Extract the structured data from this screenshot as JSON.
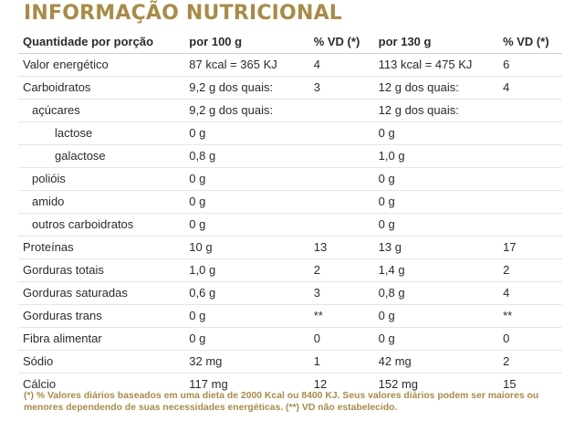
{
  "title": "INFORMAÇÃO NUTRICIONAL",
  "header": {
    "col_name": "Quantidade por porção",
    "col_100": "por 100 g",
    "col_vd1": "% VD (*)",
    "col_130": "por 130 g",
    "col_vd2": "% VD (*)"
  },
  "rows": [
    {
      "name": "Valor energético",
      "indent": 0,
      "v1": "87 kcal = 365 KJ",
      "vd1": "4",
      "v2": "113 kcal = 475 KJ",
      "vd2": "6"
    },
    {
      "name": "Carboidratos",
      "indent": 0,
      "v1": "9,2 g dos quais:",
      "vd1": "3",
      "v2": "12 g dos quais:",
      "vd2": "4"
    },
    {
      "name": "açúcares",
      "indent": 1,
      "v1": "9,2 g dos quais:",
      "vd1": "",
      "v2": "12 g dos quais:",
      "vd2": ""
    },
    {
      "name": "lactose",
      "indent": 2,
      "v1": "0 g",
      "vd1": "",
      "v2": "0 g",
      "vd2": ""
    },
    {
      "name": "galactose",
      "indent": 2,
      "v1": "0,8 g",
      "vd1": "",
      "v2": "1,0 g",
      "vd2": ""
    },
    {
      "name": "polióis",
      "indent": 1,
      "v1": "0 g",
      "vd1": "",
      "v2": "0 g",
      "vd2": ""
    },
    {
      "name": "amido",
      "indent": 1,
      "v1": "0 g",
      "vd1": "",
      "v2": "0 g",
      "vd2": ""
    },
    {
      "name": "outros carboidratos",
      "indent": 1,
      "v1": "0 g",
      "vd1": "",
      "v2": "0 g",
      "vd2": ""
    },
    {
      "name": "Proteínas",
      "indent": 0,
      "v1": "10 g",
      "vd1": "13",
      "v2": "13 g",
      "vd2": "17"
    },
    {
      "name": "Gorduras totais",
      "indent": 0,
      "v1": "1,0 g",
      "vd1": "2",
      "v2": "1,4 g",
      "vd2": "2"
    },
    {
      "name": "Gorduras saturadas",
      "indent": 0,
      "v1": "0,6 g",
      "vd1": "3",
      "v2": "0,8 g",
      "vd2": "4"
    },
    {
      "name": "Gorduras trans",
      "indent": 0,
      "v1": "0 g",
      "vd1": "**",
      "v2": "0 g",
      "vd2": "**"
    },
    {
      "name": "Fibra alimentar",
      "indent": 0,
      "v1": "0 g",
      "vd1": "0",
      "v2": "0 g",
      "vd2": "0"
    },
    {
      "name": "Sódio",
      "indent": 0,
      "v1": "32 mg",
      "vd1": "1",
      "v2": "42 mg",
      "vd2": "2"
    },
    {
      "name": "Cálcio",
      "indent": 0,
      "v1": "117 mg",
      "vd1": "12",
      "v2": "152 mg",
      "vd2": "15"
    }
  ],
  "footnote": "(*) % Valores diários baseados em uma dieta de 2000 Kcal ou 8400 KJ. Seus valores diários podem ser maiores ou menores dependendo de suas necessidades energéticas. (**) VD não estabelecido.",
  "colors": {
    "accent": "#a98b45",
    "text": "#2b2b2b"
  }
}
